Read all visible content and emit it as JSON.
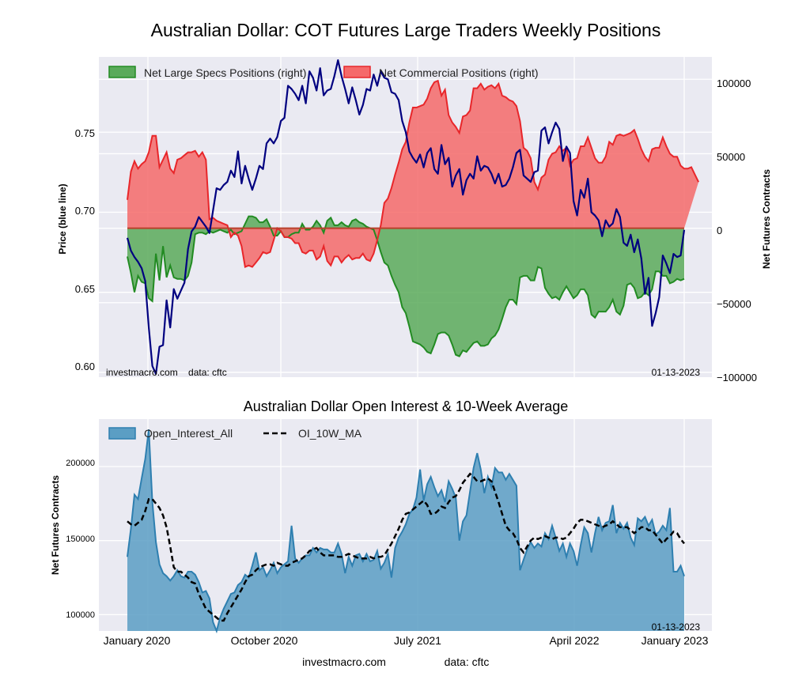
{
  "chart_data": [
    {
      "type": "area+line",
      "title": "Australian Dollar: COT Futures Large Traders Weekly Positions",
      "ylabel_left": "Price (blue line)",
      "ylabel_right": "Net Futures Contracts",
      "ylim_left": [
        0.597,
        0.797
      ],
      "ylim_right": [
        -100000,
        115000
      ],
      "left_ticks": [
        "0.60",
        "0.65",
        "0.70",
        "0.75"
      ],
      "right_ticks": [
        "100000",
        "50000",
        "0",
        "−50000",
        "−100000"
      ],
      "legend": [
        "Net Large Specs Positions (right)",
        "Net Commercial Positions (right)"
      ],
      "watermark": "investmacro.com    data: cftc",
      "date_label": "01-13-2023",
      "colors": {
        "price": "#000080",
        "specs_fill": "#5aaa5a",
        "specs_line": "#228b22",
        "comm_fill": "#f56a6a",
        "comm_line": "#e8262a"
      },
      "weeks": 157,
      "price": [
        0.684,
        0.676,
        0.672,
        0.669,
        0.665,
        0.657,
        0.628,
        0.604,
        0.599,
        0.616,
        0.617,
        0.645,
        0.628,
        0.652,
        0.646,
        0.651,
        0.656,
        0.677,
        0.688,
        0.691,
        0.697,
        0.694,
        0.691,
        0.687,
        0.701,
        0.715,
        0.714,
        0.717,
        0.719,
        0.726,
        0.722,
        0.738,
        0.718,
        0.729,
        0.721,
        0.714,
        0.721,
        0.729,
        0.727,
        0.743,
        0.746,
        0.743,
        0.747,
        0.757,
        0.759,
        0.779,
        0.777,
        0.774,
        0.77,
        0.779,
        0.768,
        0.788,
        0.784,
        0.776,
        0.79,
        0.773,
        0.776,
        0.777,
        0.785,
        0.795,
        0.785,
        0.777,
        0.768,
        0.778,
        0.77,
        0.761,
        0.767,
        0.777,
        0.776,
        0.786,
        0.779,
        0.788,
        0.784,
        0.783,
        0.775,
        0.774,
        0.77,
        0.757,
        0.75,
        0.738,
        0.734,
        0.731,
        0.736,
        0.728,
        0.737,
        0.74,
        0.727,
        0.724,
        0.742,
        0.73,
        0.734,
        0.716,
        0.723,
        0.727,
        0.711,
        0.72,
        0.724,
        0.721,
        0.735,
        0.726,
        0.729,
        0.728,
        0.724,
        0.718,
        0.724,
        0.716,
        0.717,
        0.721,
        0.728,
        0.737,
        0.739,
        0.723,
        0.721,
        0.719,
        0.725,
        0.726,
        0.751,
        0.753,
        0.743,
        0.75,
        0.756,
        0.752,
        0.732,
        0.741,
        0.737,
        0.707,
        0.698,
        0.714,
        0.709,
        0.721,
        0.7,
        0.698,
        0.695,
        0.685,
        0.695,
        0.691,
        0.693,
        0.702,
        0.697,
        0.681,
        0.679,
        0.686,
        0.675,
        0.683,
        0.671,
        0.649,
        0.659,
        0.629,
        0.637,
        0.647,
        0.673,
        0.668,
        0.662,
        0.674,
        0.672,
        0.673,
        0.689
      ],
      "specs": [
        -19000,
        -30000,
        -43000,
        -32000,
        -36000,
        -37000,
        -47000,
        -49000,
        -17000,
        -35000,
        -12000,
        -33000,
        -25000,
        -33000,
        -34000,
        -34000,
        -35000,
        -32000,
        -23000,
        -4000,
        -3000,
        -3000,
        -4000,
        -2000,
        -3000,
        -2000,
        -1000,
        -2000,
        -3000,
        -1000,
        -4000,
        -3000,
        -2000,
        3000,
        8000,
        8000,
        7000,
        4000,
        4000,
        6000,
        1000,
        -5000,
        -5000,
        -2000,
        -6000,
        -6000,
        -4000,
        -3000,
        -3000,
        3000,
        -1000,
        -1000,
        1000,
        5000,
        2000,
        -3000,
        5000,
        7000,
        2000,
        2000,
        4000,
        2000,
        1000,
        5000,
        6000,
        4000,
        3000,
        1000,
        0,
        -1000,
        -8000,
        -16000,
        -23000,
        -25000,
        -32000,
        -38000,
        -43000,
        -53000,
        -57000,
        -66000,
        -76000,
        -77000,
        -78000,
        -80000,
        -83000,
        -84000,
        -78000,
        -71000,
        -70000,
        -70000,
        -72000,
        -78000,
        -85000,
        -86000,
        -82000,
        -83000,
        -80000,
        -77000,
        -76000,
        -79000,
        -79000,
        -78000,
        -74000,
        -72000,
        -68000,
        -61000,
        -53000,
        -48000,
        -48000,
        -51000,
        -33000,
        -32000,
        -32000,
        -35000,
        -35000,
        -26000,
        -27000,
        -40000,
        -44000,
        -47000,
        -46000,
        -48000,
        -43000,
        -39000,
        -43000,
        -47000,
        -45000,
        -41000,
        -41000,
        -45000,
        -58000,
        -60000,
        -56000,
        -56000,
        -56000,
        -53000,
        -48000,
        -56000,
        -58000,
        -52000,
        -38000,
        -37000,
        -40000,
        -47000,
        -46000,
        -43000,
        -45000,
        -41000,
        -29000,
        -29000,
        -32000,
        -32000,
        -37000,
        -36000,
        -34000,
        -35000,
        -34000
      ],
      "comm": [
        19000,
        38000,
        45000,
        40000,
        43000,
        45000,
        51000,
        62000,
        62000,
        41000,
        46000,
        51000,
        40000,
        37000,
        46000,
        47000,
        49000,
        51000,
        51000,
        52000,
        48000,
        51000,
        46000,
        6000,
        7000,
        5000,
        4000,
        3000,
        2000,
        -6000,
        -3000,
        -5000,
        -12000,
        -26000,
        -25000,
        -26000,
        -23000,
        -20000,
        -16000,
        -17000,
        -16000,
        -8000,
        0,
        -2000,
        -6000,
        -6000,
        -7000,
        -10000,
        -10000,
        -16000,
        -17000,
        -15000,
        -15000,
        -21000,
        -19000,
        -12000,
        -22000,
        -25000,
        -19000,
        -19000,
        -23000,
        -20000,
        -18000,
        -21000,
        -20000,
        -20000,
        -17000,
        -21000,
        -22000,
        -17000,
        -8000,
        2000,
        17000,
        20000,
        27000,
        36000,
        44000,
        53000,
        58000,
        71000,
        81000,
        81000,
        82000,
        83000,
        87000,
        94000,
        98000,
        99000,
        89000,
        93000,
        76000,
        71000,
        68000,
        64000,
        75000,
        76000,
        79000,
        94000,
        94000,
        97000,
        93000,
        95000,
        96000,
        94000,
        97000,
        89000,
        88000,
        86000,
        85000,
        82000,
        72000,
        54000,
        52000,
        47000,
        31000,
        26000,
        34000,
        36000,
        46000,
        50000,
        51000,
        55000,
        52000,
        54000,
        42000,
        46000,
        47000,
        55000,
        55000,
        61000,
        54000,
        47000,
        44000,
        44000,
        48000,
        58000,
        56000,
        62000,
        63000,
        62000,
        63000,
        64000,
        66000,
        60000,
        53000,
        48000,
        45000,
        53000,
        54000,
        54000,
        61000,
        55000,
        50000,
        48000,
        48000,
        42000,
        40000,
        40000,
        41000,
        36000,
        31000
      ]
    },
    {
      "type": "area+line",
      "title": "Australian Dollar Open Interest & 10-Week Average",
      "ylabel": "Net Futures Contracts",
      "ylim": [
        89000,
        232000
      ],
      "y_ticks": [
        "100000",
        "150000",
        "200000"
      ],
      "x_ticks": [
        "January 2020",
        "October 2020",
        "July 2021",
        "April 2022",
        "January 2023"
      ],
      "legend": [
        "Open_Interest_All",
        "OI_10W_MA"
      ],
      "date_label": "01-13-2023",
      "colors": {
        "oi_fill": "#5b9ec4",
        "oi_line": "#2e7fb0",
        "ma_line": "#000000"
      },
      "oi": [
        139000,
        158000,
        181000,
        178000,
        192000,
        205000,
        225000,
        176000,
        149000,
        134000,
        128000,
        126000,
        123000,
        126000,
        130000,
        126000,
        125000,
        129000,
        129000,
        127000,
        122000,
        115000,
        116000,
        111000,
        95000,
        89000,
        98000,
        104000,
        109000,
        114000,
        115000,
        120000,
        122000,
        127000,
        125000,
        133000,
        142000,
        130000,
        132000,
        126000,
        130000,
        135000,
        128000,
        132000,
        134000,
        136000,
        160000,
        138000,
        135000,
        138000,
        140000,
        140000,
        145000,
        142000,
        145000,
        144000,
        144000,
        142000,
        142000,
        148000,
        141000,
        128000,
        139000,
        133000,
        140000,
        141000,
        136000,
        141000,
        136000,
        137000,
        143000,
        131000,
        135000,
        141000,
        125000,
        145000,
        152000,
        156000,
        161000,
        168000,
        171000,
        179000,
        198000,
        177000,
        188000,
        193000,
        186000,
        180000,
        184000,
        176000,
        190000,
        185000,
        179000,
        150000,
        163000,
        167000,
        183000,
        199000,
        209000,
        198000,
        182000,
        193000,
        186000,
        199000,
        196000,
        196000,
        191000,
        195000,
        191000,
        187000,
        130000,
        137000,
        144000,
        149000,
        145000,
        148000,
        146000,
        155000,
        151000,
        160000,
        152000,
        143000,
        148000,
        139000,
        148000,
        143000,
        133000,
        147000,
        159000,
        155000,
        142000,
        155000,
        166000,
        157000,
        162000,
        163000,
        174000,
        155000,
        162000,
        158000,
        162000,
        152000,
        147000,
        165000,
        163000,
        166000,
        160000,
        164000,
        154000,
        156000,
        160000,
        157000,
        172000,
        129000,
        129000,
        133000,
        126000
      ],
      "ma": [
        163000,
        161000,
        160000,
        162000,
        164000,
        170000,
        178000,
        178000,
        175000,
        172000,
        167000,
        159000,
        146000,
        132000,
        129000,
        129000,
        127000,
        125000,
        122000,
        121000,
        114000,
        109000,
        104000,
        102000,
        100000,
        98000,
        96000,
        96000,
        101000,
        105000,
        109000,
        113000,
        117000,
        122000,
        126000,
        127000,
        130000,
        132000,
        133000,
        134000,
        134000,
        133000,
        135000,
        134000,
        133000,
        133000,
        135000,
        136000,
        137000,
        138000,
        140000,
        143000,
        144000,
        145000,
        142000,
        140000,
        140000,
        140000,
        140000,
        139000,
        139000,
        140000,
        141000,
        140000,
        139000,
        138000,
        138000,
        138000,
        139000,
        138000,
        139000,
        139000,
        140000,
        144000,
        148000,
        153000,
        158000,
        164000,
        168000,
        169000,
        171000,
        173000,
        175000,
        177000,
        174000,
        168000,
        168000,
        170000,
        173000,
        172000,
        176000,
        179000,
        180000,
        184000,
        189000,
        192000,
        195000,
        193000,
        190000,
        190000,
        191000,
        192000,
        190000,
        183000,
        176000,
        168000,
        160000,
        157000,
        155000,
        151000,
        145000,
        142000,
        146000,
        150000,
        152000,
        151000,
        152000,
        153000,
        152000,
        151000,
        152000,
        152000,
        151000,
        152000,
        155000,
        158000,
        162000,
        164000,
        164000,
        163000,
        162000,
        161000,
        160000,
        159000,
        160000,
        161000,
        163000,
        161000,
        159000,
        159000,
        159000,
        157000,
        155000,
        157000,
        159000,
        159000,
        157000,
        157000,
        154000,
        151000,
        148000,
        151000,
        153000,
        156000,
        155000,
        151000,
        148000
      ]
    }
  ],
  "footer": {
    "site": "investmacro.com",
    "source": "data: cftc"
  }
}
